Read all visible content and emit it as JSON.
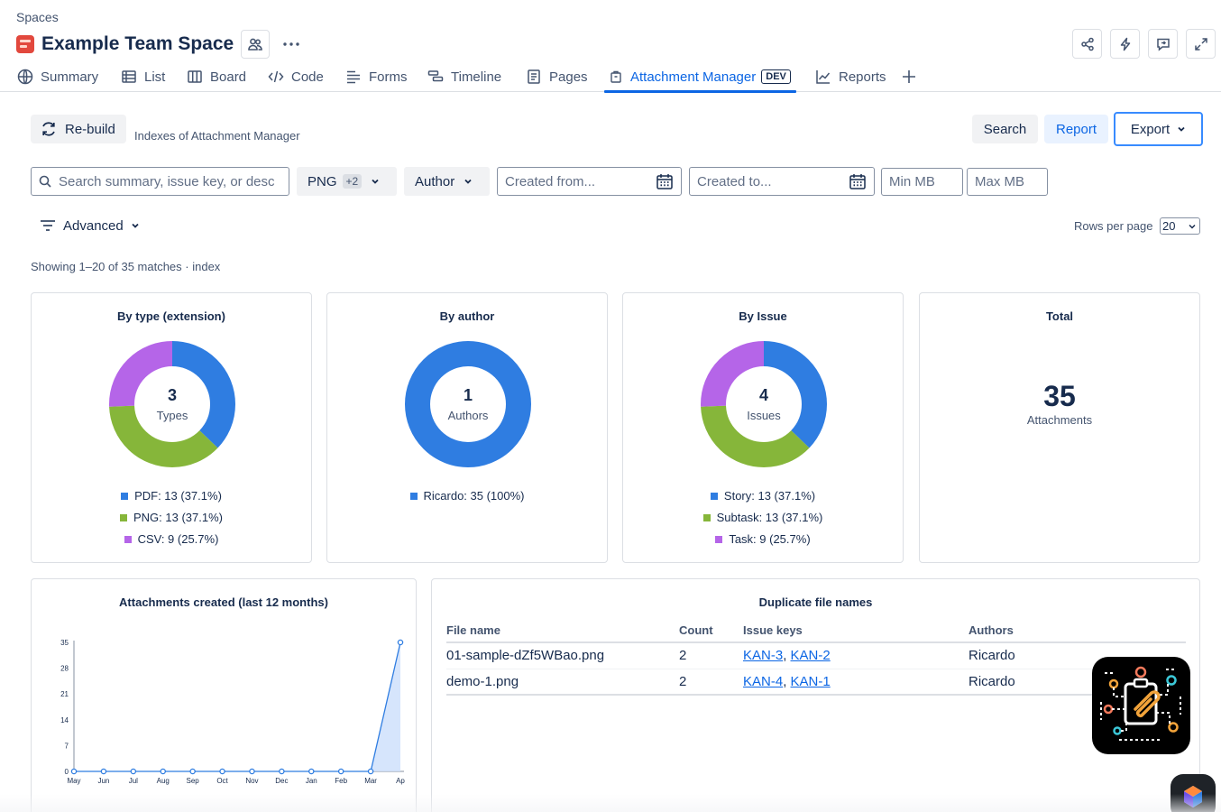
{
  "breadcrumb": "Spaces",
  "space": {
    "title": "Example Team Space"
  },
  "tabs": [
    {
      "label": "Summary"
    },
    {
      "label": "List"
    },
    {
      "label": "Board"
    },
    {
      "label": "Code"
    },
    {
      "label": "Forms"
    },
    {
      "label": "Timeline"
    },
    {
      "label": "Pages"
    },
    {
      "label": "Attachment Manager",
      "badge": "DEV",
      "active": true
    },
    {
      "label": "Reports"
    }
  ],
  "toolbar": {
    "rebuild_label": "Re-build",
    "rebuild_note": "Indexes of Attachment Manager",
    "search_label": "Search",
    "report_label": "Report",
    "export_label": "Export"
  },
  "filters": {
    "search_placeholder": "Search summary, issue key, or desc...",
    "type_label": "PNG",
    "type_extra": "+2",
    "author_label": "Author",
    "created_from": "Created from...",
    "created_to": "Created to...",
    "min_mb": "Min MB",
    "max_mb": "Max MB",
    "advanced_label": "Advanced",
    "rows_label": "Rows per page",
    "rows_value": "20"
  },
  "showing": "Showing 1–20 of 35 matches · index",
  "colors": {
    "blue": "#2f7de1",
    "green": "#86b63a",
    "purple": "#b565e8",
    "accent": "#0c66e4"
  },
  "cards": {
    "by_type": {
      "title": "By type (extension)",
      "center_number": "3",
      "center_label": "Types",
      "legend": [
        "PDF: 13 (37.1%)",
        "PNG: 13 (37.1%)",
        "CSV: 9 (25.7%)"
      ],
      "values": [
        13,
        13,
        9
      ]
    },
    "by_author": {
      "title": "By author",
      "center_number": "1",
      "center_label": "Authors",
      "legend": [
        "Ricardo: 35 (100%)"
      ],
      "values": [
        35
      ]
    },
    "by_issue": {
      "title": "By Issue",
      "center_number": "4",
      "center_label": "Issues",
      "legend": [
        "Story: 13 (37.1%)",
        "Subtask: 13 (37.1%)",
        "Task: 9 (25.7%)"
      ],
      "values": [
        13,
        13,
        9
      ]
    },
    "total": {
      "title": "Total",
      "number": "35",
      "label": "Attachments"
    }
  },
  "chart_data": {
    "type": "area",
    "title": "Attachments created (last 12 months)",
    "categories": [
      "May",
      "Jun",
      "Jul",
      "Aug",
      "Sep",
      "Oct",
      "Nov",
      "Dec",
      "Jan",
      "Feb",
      "Mar",
      "Ap"
    ],
    "values": [
      0,
      0,
      0,
      0,
      0,
      0,
      0,
      0,
      0,
      0,
      0,
      35
    ],
    "yticks": [
      0,
      7,
      14,
      21,
      28,
      35
    ],
    "ylim": [
      0,
      35
    ],
    "grid": false
  },
  "duplicates": {
    "title": "Duplicate file names",
    "headers": [
      "File name",
      "Count",
      "Issue keys",
      "Authors"
    ],
    "rows": [
      {
        "file": "01-sample-dZf5WBao.png",
        "count": "2",
        "key1": "KAN-3",
        "key2": "KAN-2",
        "author": "Ricardo"
      },
      {
        "file": "demo-1.png",
        "count": "2",
        "key1": "KAN-4",
        "key2": "KAN-1",
        "author": "Ricardo"
      }
    ]
  }
}
